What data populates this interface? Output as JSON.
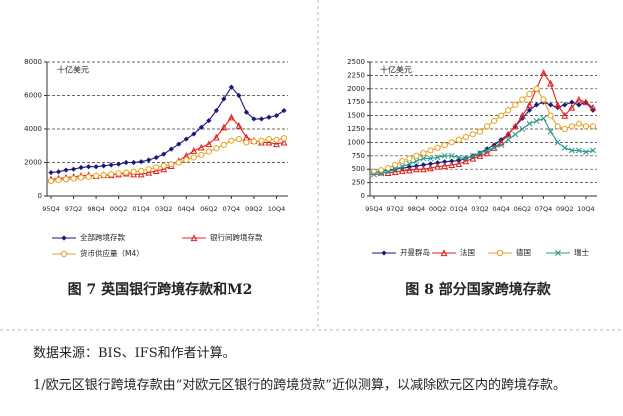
{
  "chart_data": [
    {
      "type": "line",
      "unit_label": "十亿美元",
      "caption": "图 7 英国银行跨境存款和M2",
      "categories": [
        "95Q4",
        null,
        null,
        "97Q2",
        null,
        null,
        "98Q4",
        null,
        null,
        "00Q2",
        null,
        null,
        "01Q4",
        null,
        null,
        "03Q2",
        null,
        null,
        "04Q4",
        null,
        null,
        "06Q2",
        null,
        null,
        "07Q4",
        null,
        null,
        "09Q2",
        null,
        null,
        "10Q4",
        null
      ],
      "ylim": [
        0,
        8000
      ],
      "yticks": [
        0,
        2000,
        4000,
        6000,
        8000
      ],
      "grid": true,
      "series": [
        {
          "name": "全部跨境存款",
          "color": "#1a1a7a",
          "marker": "diamond",
          "values": [
            1400,
            1450,
            1550,
            1600,
            1700,
            1750,
            1750,
            1800,
            1850,
            1900,
            2000,
            2000,
            2050,
            2150,
            2300,
            2500,
            2800,
            3100,
            3400,
            3700,
            4100,
            4500,
            5100,
            5800,
            6500,
            6000,
            5000,
            4600,
            4600,
            4700,
            4800,
            5100
          ]
        },
        {
          "name": "银行间跨境存款",
          "color": "#e02020",
          "marker": "triangle",
          "values": [
            1000,
            1050,
            1100,
            1150,
            1200,
            1250,
            1200,
            1250,
            1250,
            1300,
            1350,
            1300,
            1300,
            1400,
            1500,
            1600,
            1800,
            2100,
            2400,
            2700,
            2900,
            3100,
            3500,
            4100,
            4700,
            4200,
            3500,
            3300,
            3200,
            3200,
            3100,
            3200
          ]
        },
        {
          "name": "货币供应量（M4）",
          "color": "#e8a020",
          "marker": "circle",
          "values": [
            900,
            950,
            1000,
            1050,
            1100,
            1150,
            1200,
            1250,
            1300,
            1350,
            1400,
            1450,
            1500,
            1600,
            1700,
            1800,
            1900,
            2000,
            2150,
            2300,
            2450,
            2650,
            2850,
            3050,
            3300,
            3400,
            3200,
            3250,
            3300,
            3400,
            3350,
            3450
          ]
        }
      ]
    },
    {
      "type": "line",
      "unit_label": "十亿美元",
      "caption": "图 8 部分国家跨境存款",
      "categories": [
        "95Q4",
        null,
        null,
        "97Q2",
        null,
        null,
        "98Q4",
        null,
        null,
        "00Q2",
        null,
        null,
        "01Q4",
        null,
        null,
        "03Q2",
        null,
        null,
        "04Q4",
        null,
        null,
        "06Q2",
        null,
        null,
        "07Q4",
        null,
        null,
        "09Q2",
        null,
        null,
        "10Q4",
        null
      ],
      "ylim": [
        0,
        2500
      ],
      "yticks": [
        0,
        250,
        500,
        750,
        1000,
        1250,
        1500,
        1750,
        2000,
        2250,
        2500
      ],
      "grid": true,
      "series": [
        {
          "name": "开曼群岛",
          "color": "#1a1a7a",
          "marker": "diamond",
          "values": [
            450,
            460,
            480,
            500,
            520,
            540,
            560,
            580,
            600,
            620,
            640,
            650,
            660,
            700,
            750,
            800,
            880,
            950,
            1050,
            1150,
            1300,
            1450,
            1600,
            1700,
            1750,
            1700,
            1650,
            1700,
            1750,
            1700,
            1750,
            1600
          ]
        },
        {
          "name": "法国",
          "color": "#e02020",
          "marker": "triangle",
          "values": [
            450,
            440,
            430,
            450,
            470,
            480,
            500,
            500,
            520,
            550,
            560,
            580,
            600,
            650,
            700,
            750,
            800,
            900,
            1000,
            1150,
            1300,
            1500,
            1700,
            2000,
            2300,
            2100,
            1700,
            1500,
            1650,
            1800,
            1750,
            1650
          ]
        },
        {
          "name": "德国",
          "color": "#e8a020",
          "marker": "circle",
          "values": [
            450,
            480,
            520,
            580,
            650,
            700,
            750,
            800,
            850,
            900,
            950,
            1000,
            1050,
            1100,
            1150,
            1200,
            1300,
            1400,
            1500,
            1600,
            1700,
            1800,
            1900,
            2000,
            1800,
            1500,
            1300,
            1250,
            1300,
            1350,
            1300,
            1300
          ]
        },
        {
          "name": "瑞士",
          "color": "#2a9a8a",
          "marker": "x",
          "values": [
            400,
            420,
            450,
            500,
            550,
            600,
            650,
            700,
            700,
            720,
            750,
            750,
            720,
            700,
            750,
            800,
            850,
            900,
            950,
            1050,
            1150,
            1250,
            1350,
            1400,
            1450,
            1200,
            1000,
            900,
            850,
            850,
            820,
            850
          ]
        }
      ]
    }
  ],
  "source": "数据来源：BIS、IFS和作者计算。",
  "note": "1/欧元区银行跨境存款由“对欧元区银行的跨境贷款”近似测算，以减除欧元区内的跨境存款。"
}
